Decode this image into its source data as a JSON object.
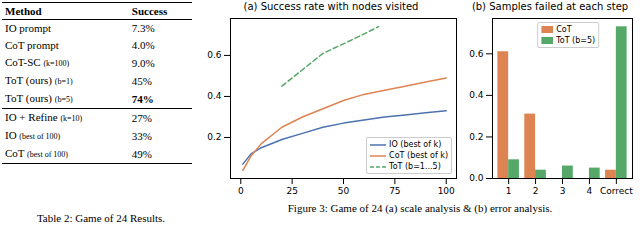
{
  "table": {
    "header": [
      "Method",
      "Success"
    ],
    "groups": [
      [
        {
          "method": "IO prompt",
          "setting": null,
          "success": "7.3%"
        },
        {
          "method": "CoT prompt",
          "setting": null,
          "success": "4.0%"
        },
        {
          "method": "CoT-SC",
          "setting": "(k=100)",
          "success": "9.0%"
        },
        {
          "method": "ToT (ours)",
          "setting": "(b=1)",
          "success": "45%"
        },
        {
          "method": "ToT (ours)",
          "setting": "(b=5)",
          "success": "74%",
          "bold": true
        }
      ],
      [
        {
          "method": "IO + Refine",
          "setting": "(k=10)",
          "success": "27%"
        },
        {
          "method": "IO",
          "setting": "(best of 100)",
          "success": "33%"
        },
        {
          "method": "CoT",
          "setting": "(best of 100)",
          "success": "49%"
        }
      ]
    ],
    "caption": "Table 2: Game of 24 Results."
  },
  "figure_caption": "Figure 3: Game of 24 (a) scale analysis & (b) error analysis.",
  "chart_data": [
    {
      "type": "line",
      "title": "(a) Success rate with nodes visited",
      "xlim": [
        -5,
        105
      ],
      "xticks": [
        0,
        25,
        50,
        75,
        100
      ],
      "ylim": [
        0,
        0.78
      ],
      "yticks": [
        0.2,
        0.4,
        0.6
      ],
      "grid": false,
      "legend": "lower right",
      "series": [
        {
          "name": "IO (best of k)",
          "color": "#4c72b0",
          "line_style": "solid",
          "x": [
            1,
            5,
            10,
            20,
            30,
            40,
            50,
            60,
            70,
            80,
            90,
            100
          ],
          "values": [
            0.07,
            0.12,
            0.15,
            0.19,
            0.22,
            0.25,
            0.27,
            0.285,
            0.3,
            0.31,
            0.32,
            0.33
          ]
        },
        {
          "name": "CoT (best of k)",
          "color": "#dd8452",
          "line_style": "solid",
          "x": [
            1,
            5,
            10,
            20,
            30,
            40,
            50,
            60,
            70,
            80,
            90,
            100
          ],
          "values": [
            0.04,
            0.11,
            0.17,
            0.25,
            0.3,
            0.34,
            0.38,
            0.41,
            0.43,
            0.45,
            0.47,
            0.49
          ]
        },
        {
          "name": "ToT (b=1...5)",
          "color": "#55a868",
          "line_style": "dashed",
          "x": [
            20,
            30,
            40,
            55,
            67
          ],
          "values": [
            0.45,
            0.53,
            0.61,
            0.68,
            0.74
          ]
        }
      ]
    },
    {
      "type": "bar",
      "title": "(b) Samples failed at each step",
      "categories": [
        "1",
        "2",
        "3",
        "4",
        "Correct"
      ],
      "ylim": [
        0,
        0.77
      ],
      "yticks": [
        {
          "value": 0,
          "label": "0.0"
        },
        0.2,
        0.4,
        0.6
      ],
      "grid": false,
      "legend": "upper center",
      "series": [
        {
          "name": "CoT",
          "color": "#dd8452",
          "values": [
            0.61,
            0.31,
            0,
            0,
            0.04
          ]
        },
        {
          "name": "ToT (b=5)",
          "color": "#55a868",
          "values": [
            0.09,
            0.04,
            0.06,
            0.05,
            0.73
          ]
        }
      ]
    }
  ]
}
